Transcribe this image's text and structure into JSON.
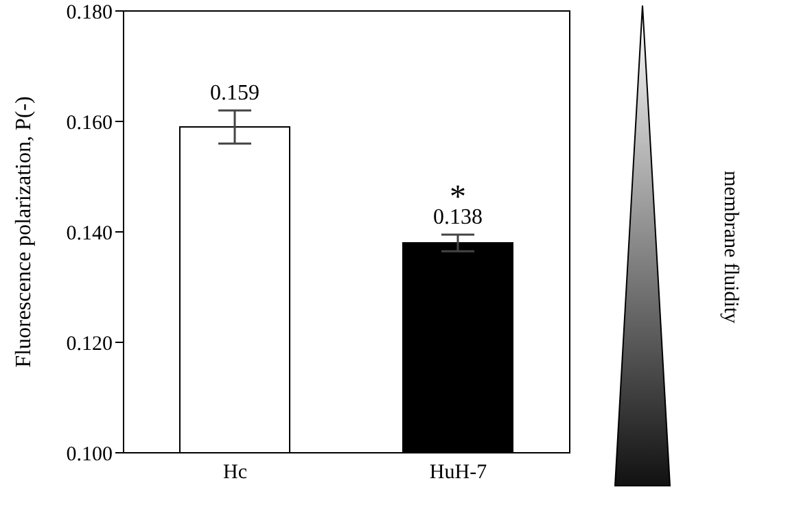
{
  "chart_data": {
    "type": "bar",
    "ylabel": "Fluorescence polarization, P(-)",
    "categories": [
      "Hc",
      "HuH-7"
    ],
    "values": [
      0.159,
      0.138
    ],
    "colors": [
      "#ffffff",
      "#000000"
    ],
    "errors": [
      0.003,
      0.0015
    ],
    "data_labels": true,
    "ylim": [
      0.1,
      0.18
    ],
    "yticks": [
      {
        "value": 0.1,
        "label": "0.100"
      },
      {
        "value": 0.12,
        "label": "0.120"
      },
      {
        "value": 0.14,
        "label": "0.140"
      },
      {
        "value": 0.16,
        "label": "0.160"
      },
      {
        "value": 0.18,
        "label": "0.180"
      }
    ],
    "grid": false,
    "legend": false,
    "annotations": [
      "*",
      "membrane fluidity"
    ]
  }
}
